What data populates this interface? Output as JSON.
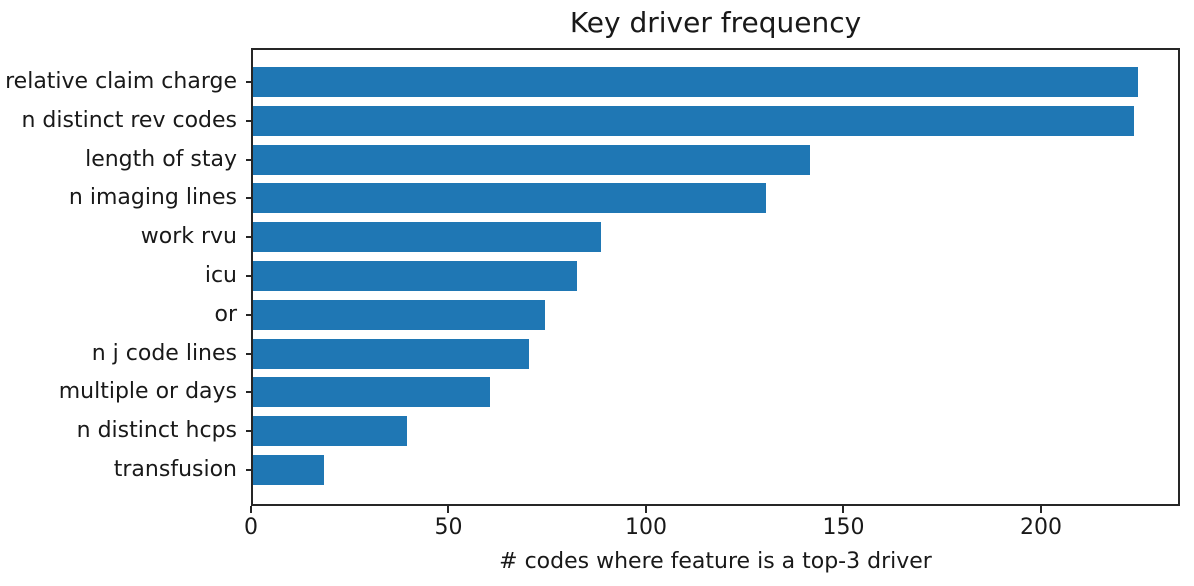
{
  "chart_data": {
    "type": "bar",
    "orientation": "horizontal",
    "title": "Key driver frequency",
    "xlabel": "# codes where feature is a top-3 driver",
    "ylabel": "",
    "categories": [
      "relative claim charge",
      "n distinct rev codes",
      "length of stay",
      "n imaging lines",
      "work rvu",
      "icu",
      "or",
      "n j code lines",
      "multiple or days",
      "n distinct hcps",
      "transfusion"
    ],
    "values": [
      224,
      223,
      141,
      130,
      88,
      82,
      74,
      70,
      60,
      39,
      18
    ],
    "xticks": [
      0,
      50,
      100,
      150,
      200
    ],
    "xlim": [
      0,
      235.2
    ],
    "bar_color": "#1f77b4",
    "spine_color": "#262626",
    "grid": false,
    "legend_position": "none"
  }
}
